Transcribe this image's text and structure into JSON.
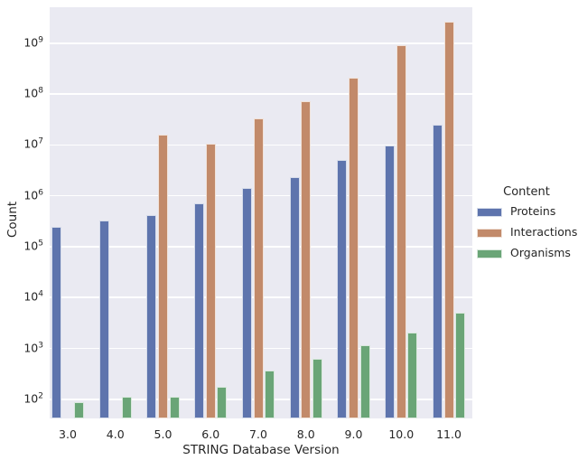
{
  "chart_data": {
    "type": "bar",
    "title": "",
    "xlabel": "STRING Database Version",
    "ylabel": "Count",
    "yscale": "log",
    "ylim": [
      42,
      5100000000
    ],
    "ytick_exponents": [
      2,
      3,
      4,
      5,
      6,
      7,
      8,
      9
    ],
    "yticklabels": [
      "10^2",
      "10^3",
      "10^4",
      "10^5",
      "10^6",
      "10^7",
      "10^8",
      "10^9"
    ],
    "grid": true,
    "categories": [
      "3.0",
      "4.0",
      "5.0",
      "6.0",
      "7.0",
      "8.0",
      "9.0",
      "10.0",
      "11.0"
    ],
    "legend": {
      "title": "Content",
      "position": "center-right"
    },
    "series": [
      {
        "name": "Proteins",
        "color": "#5e74ad",
        "values": [
          250000,
          330000,
          420000,
          700000,
          1400000,
          2300000,
          5000000,
          9600000,
          24600000
        ]
      },
      {
        "name": "Interactions",
        "color": "#c28a6a",
        "values": [
          null,
          null,
          16000000,
          10500000,
          33000000,
          72000000,
          210000000,
          930000000,
          2700000000
        ]
      },
      {
        "name": "Organisms",
        "color": "#6aa577",
        "values": [
          89,
          110,
          110,
          179,
          373,
          630,
          1133,
          2031,
          5090
        ]
      }
    ],
    "colors": {
      "plot_background": "#eaeaf2",
      "grid": "#ffffff",
      "text": "#262626"
    }
  }
}
